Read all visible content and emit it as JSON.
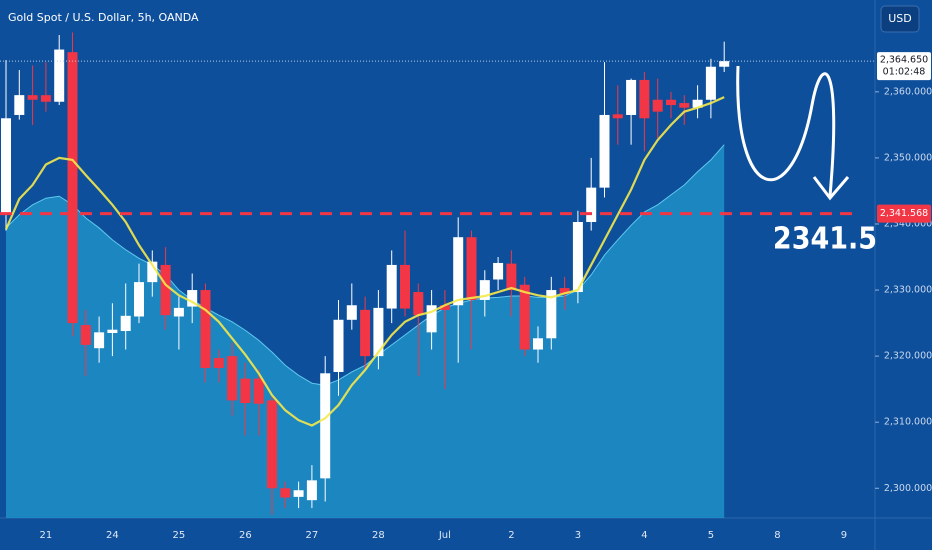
{
  "chart_data": {
    "type": "candlestick",
    "title": "Gold Spot / U.S. Dollar, 5h, OANDA",
    "currency": "USD",
    "categories": [
      null,
      null,
      null,
      "21",
      null,
      null,
      null,
      null,
      "24",
      null,
      null,
      null,
      null,
      "25",
      null,
      null,
      null,
      null,
      "26",
      null,
      null,
      null,
      null,
      "27",
      null,
      null,
      null,
      null,
      "28",
      null,
      null,
      null,
      null,
      "Jul",
      null,
      null,
      null,
      null,
      "2",
      null,
      null,
      null,
      null,
      "3",
      null,
      null,
      null,
      null,
      "4",
      null,
      null,
      null,
      null,
      "5",
      null,
      null,
      null,
      null,
      "8",
      null,
      null,
      null,
      null,
      "9",
      null,
      null
    ],
    "open": [
      2341.4,
      2356.5,
      2359.5,
      2359.5,
      2358.5,
      2366.0,
      2324.7,
      2321.2,
      2323.5,
      2323.8,
      2326.0,
      2331.2,
      2333.8,
      2326.0,
      2327.5,
      2330.0,
      2319.7,
      2320.0,
      2316.6,
      2316.6,
      2313.3,
      2300.0,
      2298.7,
      2298.2,
      2301.5,
      2317.6,
      2325.5,
      2327.0,
      2320.0,
      2327.2,
      2333.8,
      2329.7,
      2323.6,
      2327.7,
      2327.7,
      2338.0,
      2328.5,
      2331.6,
      2334.0,
      2330.8,
      2321.0,
      2322.7,
      2330.3,
      2329.7,
      2340.3,
      2345.5,
      2356.6,
      2356.5,
      2361.8,
      2358.8,
      2358.8,
      2358.3,
      2357.6,
      2358.8,
      2363.8,
      null,
      null,
      null,
      null,
      null,
      null,
      null,
      null,
      null,
      null,
      null
    ],
    "high": [
      2364.8,
      2363.3,
      2364.0,
      2364.5,
      2368.6,
      2369.0,
      2327.0,
      2326.0,
      2328.0,
      2331.0,
      2334.0,
      2336.0,
      2336.5,
      2329.0,
      2332.5,
      2331.0,
      2321.0,
      2322.0,
      2319.0,
      2318.0,
      2314.0,
      2301.0,
      2301.0,
      2303.5,
      2320.0,
      2328.5,
      2331.0,
      2329.0,
      2330.0,
      2336.0,
      2339.0,
      2331.0,
      2330.0,
      2330.0,
      2341.0,
      2339.0,
      2333.0,
      2335.0,
      2336.0,
      2332.0,
      2324.5,
      2332.0,
      2332.0,
      2342.0,
      2350.0,
      2364.5,
      2361.0,
      2362.0,
      2363.0,
      2362.0,
      2360.0,
      2359.5,
      2361.0,
      2365.0,
      2367.6,
      null,
      null,
      null,
      null,
      null,
      null,
      null,
      null,
      null,
      null,
      null
    ],
    "low": [
      2339.0,
      2355.8,
      2355.0,
      2357.0,
      2358.0,
      2323.0,
      2317.0,
      2319.0,
      2320.0,
      2321.0,
      2325.0,
      2329.0,
      2324.0,
      2321.0,
      2325.0,
      2316.0,
      2316.0,
      2311.0,
      2308.0,
      2308.0,
      2296.0,
      2297.0,
      2297.0,
      2297.0,
      2298.0,
      2314.0,
      2324.0,
      2318.0,
      2318.0,
      2325.0,
      2326.0,
      2317.0,
      2321.0,
      2315.0,
      2319.0,
      2321.0,
      2326.0,
      2330.0,
      2326.0,
      2320.0,
      2319.0,
      2321.0,
      2327.0,
      2328.0,
      2339.0,
      2344.0,
      2352.0,
      2352.0,
      2351.0,
      2353.0,
      2356.0,
      2355.0,
      2356.0,
      2356.0,
      2363.0,
      null,
      null,
      null,
      null,
      null,
      null,
      null,
      null,
      null,
      null,
      null
    ],
    "close": [
      2356.0,
      2359.5,
      2358.8,
      2358.5,
      2366.4,
      2325.0,
      2321.7,
      2323.6,
      2324.0,
      2326.1,
      2331.2,
      2334.3,
      2326.2,
      2327.3,
      2330.0,
      2318.2,
      2318.2,
      2313.3,
      2312.9,
      2312.8,
      2300.0,
      2298.6,
      2299.7,
      2301.2,
      2317.4,
      2325.5,
      2327.7,
      2320.0,
      2327.3,
      2333.8,
      2327.2,
      2326.2,
      2327.7,
      2327.0,
      2338.0,
      2328.5,
      2331.5,
      2334.1,
      2330.0,
      2321.0,
      2322.7,
      2330.0,
      2329.4,
      2340.3,
      2345.5,
      2356.5,
      2356.0,
      2361.8,
      2356.0,
      2357.0,
      2358.0,
      2357.6,
      2358.8,
      2363.8,
      2364.65,
      null,
      null,
      null,
      null,
      null,
      null,
      null,
      null,
      null,
      null,
      null
    ],
    "up_color": "#ffffff",
    "down_color": "#f23645",
    "area": {
      "color": "#1e8fc8",
      "line_color": "#5fc9ec",
      "values": [
        2339.4,
        2341.4,
        2342.9,
        2343.9,
        2344.2,
        2342.9,
        2340.9,
        2339.4,
        2337.6,
        2336.1,
        2334.8,
        2333.8,
        2332.3,
        2330.0,
        2328.5,
        2327.3,
        2326.2,
        2325.2,
        2323.9,
        2322.4,
        2320.6,
        2318.6,
        2317.1,
        2315.9,
        2315.6,
        2316.4,
        2317.6,
        2318.6,
        2320.2,
        2321.7,
        2323.2,
        2324.7,
        2326.2,
        2327.3,
        2328.0,
        2328.5,
        2328.8,
        2328.9,
        2329.1,
        2329.1,
        2328.9,
        2328.9,
        2329.1,
        2330.0,
        2332.3,
        2335.3,
        2337.6,
        2339.8,
        2341.8,
        2342.9,
        2344.4,
        2345.9,
        2347.9,
        2349.7,
        2352.0,
        null,
        null,
        null,
        null,
        null,
        null,
        null,
        null,
        null,
        null,
        null
      ]
    },
    "lines": [
      {
        "color": "#f5e94a",
        "values": [
          2339.2,
          2343.8,
          2345.9,
          2349.0,
          2350.0,
          2349.7,
          2347.4,
          2345.2,
          2342.9,
          2340.3,
          2336.8,
          2333.8,
          2330.8,
          2329.2,
          2328.2,
          2327.0,
          2325.2,
          2322.7,
          2320.2,
          2317.4,
          2314.1,
          2311.8,
          2310.3,
          2309.5,
          2310.6,
          2312.6,
          2315.6,
          2317.9,
          2320.6,
          2323.2,
          2325.2,
          2326.2,
          2326.7,
          2327.7,
          2328.5,
          2328.8,
          2329.1,
          2329.7,
          2330.3,
          2329.7,
          2329.2,
          2328.9,
          2329.5,
          2330.0,
          2333.8,
          2337.6,
          2341.4,
          2345.2,
          2349.7,
          2352.7,
          2355.0,
          2357.0,
          2357.6,
          2358.3,
          2359.2,
          null,
          null,
          null,
          null,
          null,
          null,
          null,
          null,
          null,
          null,
          null
        ]
      }
    ],
    "ylim": [
      2295.5,
      2373.9
    ],
    "yticks": [
      {
        "value": 2300,
        "label": "2,300.000"
      },
      {
        "value": 2310,
        "label": "2,310.000"
      },
      {
        "value": 2320,
        "label": "2,320.000"
      },
      {
        "value": 2330,
        "label": "2,330.000"
      },
      {
        "value": 2340,
        "label": "2,340.000"
      },
      {
        "value": 2350,
        "label": "2,350.000"
      },
      {
        "value": 2360,
        "label": "2,360.000"
      }
    ],
    "price_line": {
      "value": 2364.65,
      "label": "2,364.650",
      "timer": "01:02:48"
    },
    "level": {
      "value": 2341.568,
      "label": "2,341.568",
      "color": "#f23645"
    },
    "annotation": "2341.5"
  }
}
